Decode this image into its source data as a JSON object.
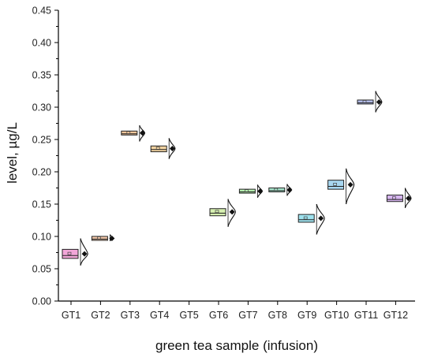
{
  "chart_data": {
    "type": "box-with-distribution",
    "xlabel": "green tea sample (infusion)",
    "ylabel": "level, µg/L",
    "ylim": [
      0,
      0.45
    ],
    "yticks": [
      0.0,
      0.05,
      0.1,
      0.15,
      0.2,
      0.25,
      0.3,
      0.35,
      0.4,
      0.45
    ],
    "ytick_labels": [
      "0.00",
      "0.05",
      "0.10",
      "0.15",
      "0.20",
      "0.25",
      "0.30",
      "0.35",
      "0.40",
      "0.45"
    ],
    "categories": [
      "GT1",
      "GT2",
      "GT3",
      "GT4",
      "GT5",
      "GT6",
      "GT7",
      "GT8",
      "GT9",
      "GT10",
      "GT11",
      "GT12"
    ],
    "grid": false,
    "samples": [
      {
        "label": "GT1",
        "mean": 0.073,
        "box_low": 0.066,
        "box_high": 0.08,
        "min": 0.055,
        "max": 0.097,
        "color": "#f2a6d8"
      },
      {
        "label": "GT2",
        "mean": 0.097,
        "box_low": 0.095,
        "box_high": 0.099,
        "min": 0.093,
        "max": 0.103,
        "color": "#f3c7a8"
      },
      {
        "label": "GT3",
        "mean": 0.26,
        "box_low": 0.257,
        "box_high": 0.263,
        "min": 0.247,
        "max": 0.272,
        "color": "#f5c79b"
      },
      {
        "label": "GT4",
        "mean": 0.236,
        "box_low": 0.231,
        "box_high": 0.24,
        "min": 0.22,
        "max": 0.252,
        "color": "#f1d3a0"
      },
      {
        "label": "GT5",
        "mean": null,
        "box_low": null,
        "box_high": null,
        "min": null,
        "max": null,
        "color": "#ffffff"
      },
      {
        "label": "GT6",
        "mean": 0.138,
        "box_low": 0.132,
        "box_high": 0.143,
        "min": 0.115,
        "max": 0.158,
        "color": "#d6efb0"
      },
      {
        "label": "GT7",
        "mean": 0.17,
        "box_low": 0.167,
        "box_high": 0.173,
        "min": 0.16,
        "max": 0.18,
        "color": "#b6efb0"
      },
      {
        "label": "GT8",
        "mean": 0.172,
        "box_low": 0.169,
        "box_high": 0.175,
        "min": 0.163,
        "max": 0.181,
        "color": "#a9e9cf"
      },
      {
        "label": "GT9",
        "mean": 0.128,
        "box_low": 0.122,
        "box_high": 0.134,
        "min": 0.103,
        "max": 0.15,
        "color": "#9fe3ef"
      },
      {
        "label": "GT10",
        "mean": 0.18,
        "box_low": 0.173,
        "box_high": 0.187,
        "min": 0.15,
        "max": 0.205,
        "color": "#a7d6f0"
      },
      {
        "label": "GT11",
        "mean": 0.308,
        "box_low": 0.305,
        "box_high": 0.311,
        "min": 0.292,
        "max": 0.325,
        "color": "#b9c2f1"
      },
      {
        "label": "GT12",
        "mean": 0.159,
        "box_low": 0.154,
        "box_high": 0.164,
        "min": 0.144,
        "max": 0.175,
        "color": "#d7b6f0"
      }
    ]
  }
}
